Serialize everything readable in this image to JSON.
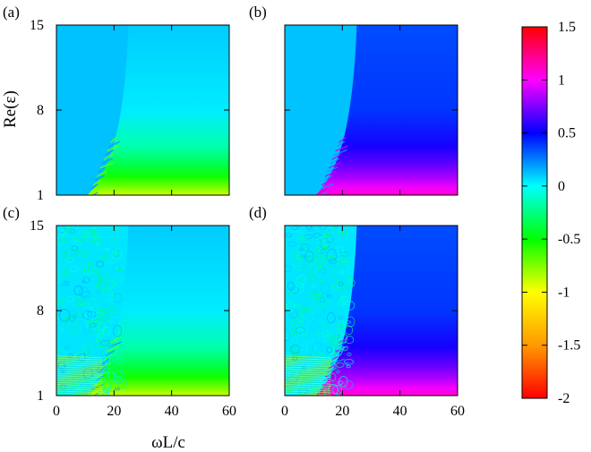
{
  "chart_data": {
    "type": "heatmap",
    "xlabel": "ωL/c",
    "ylabel": "Re(ε)",
    "xlim": [
      0,
      60
    ],
    "ylim": [
      1,
      15
    ],
    "xticks": [
      "0",
      "20",
      "40",
      "60"
    ],
    "yticks": [
      "1",
      "8",
      "15"
    ],
    "colorbar": {
      "min": -2,
      "max": 1.5,
      "ticks": [
        "1.5",
        "1",
        "0.5",
        "0",
        "-0.5",
        "-1",
        "-1.5",
        "-2"
      ],
      "colormap": [
        "#ff0000",
        "#ff9900",
        "#ffff00",
        "#00ff00",
        "#00ffff",
        "#0000ff",
        "#ff00ff",
        "#ff0000"
      ]
    },
    "panels": [
      {
        "label": "(a)",
        "background_value": 0.1,
        "low_eps_value": -0.9,
        "boundary_x_at_eps_max": 25,
        "boundary_x_at_eps_min": 17,
        "scattered_region": false
      },
      {
        "label": "(b)",
        "background_value": 0.35,
        "low_eps_value": 1.1,
        "boundary_x_at_eps_max": 25,
        "boundary_x_at_eps_min": 17,
        "scattered_region": false
      },
      {
        "label": "(c)",
        "background_value": 0.1,
        "low_eps_value": -0.9,
        "boundary_x_at_eps_max": 25,
        "boundary_x_at_eps_min": 17,
        "scattered_region": true
      },
      {
        "label": "(d)",
        "background_value": 0.35,
        "low_eps_value": 1.1,
        "boundary_x_at_eps_max": 25,
        "boundary_x_at_eps_min": 17,
        "scattered_region": true
      }
    ]
  }
}
